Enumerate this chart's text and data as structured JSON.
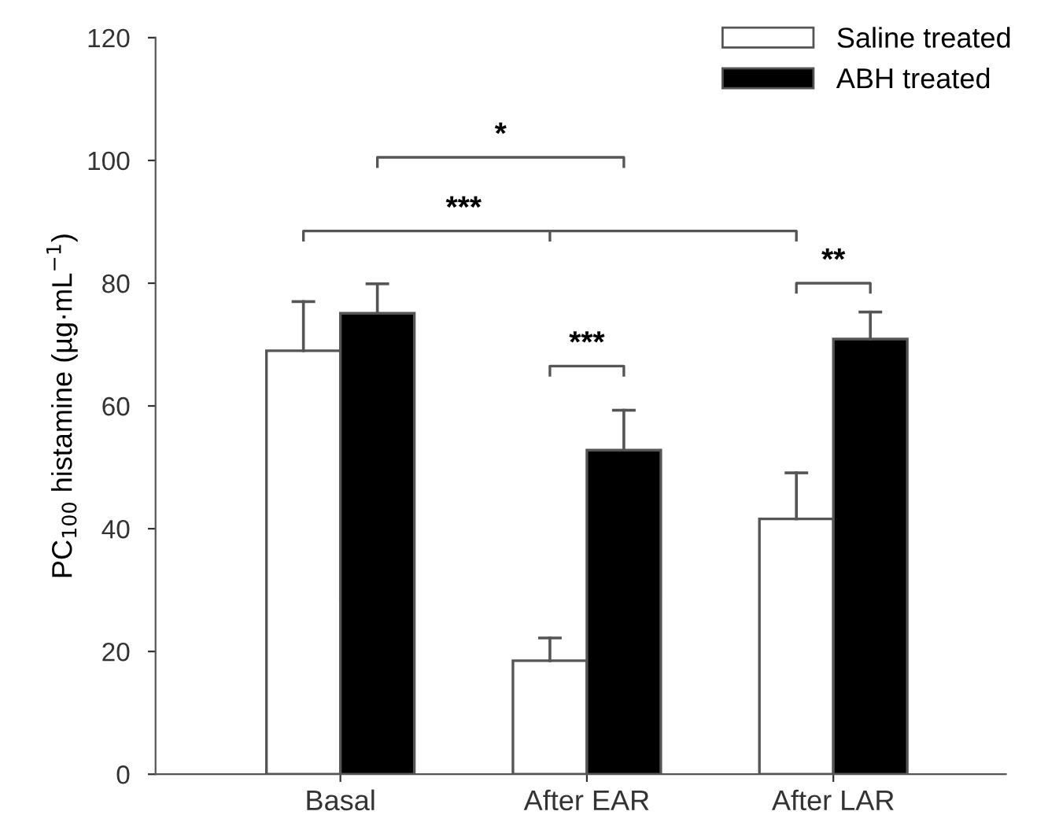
{
  "chart_data": {
    "type": "bar",
    "ylabel": "PC$_{100}$ histamine (µg·mL$^{−1}$)",
    "categories": [
      "Basal",
      "After EAR",
      "After LAR"
    ],
    "series": [
      {
        "name": "Saline treated",
        "color": "#ffffff",
        "values": [
          69.0,
          18.5,
          41.6
        ],
        "errors": [
          [
            69.0,
            77.0
          ],
          [
            18.5,
            22.2
          ],
          [
            41.6,
            49.1
          ]
        ]
      },
      {
        "name": "ABH treated",
        "color": "#000000",
        "values": [
          75.1,
          52.8,
          70.9
        ],
        "errors": [
          [
            75.1,
            79.9
          ],
          [
            52.8,
            59.3
          ],
          [
            70.9,
            75.3
          ]
        ]
      }
    ],
    "ylim": [
      0,
      120
    ],
    "yticks": [
      0,
      20,
      40,
      60,
      80,
      100,
      120
    ],
    "grid": false,
    "legend": "top right",
    "annotations": [
      "*",
      "***",
      "***",
      "**"
    ]
  }
}
